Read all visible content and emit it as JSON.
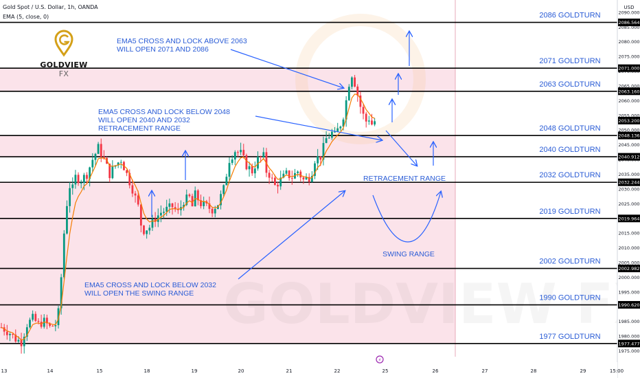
{
  "header": {
    "title": "Gold Spot / U.S. Dollar, 1h, OANDA",
    "indicator": "EMA (5, close, 0)",
    "currency": "USD"
  },
  "logo": {
    "name": "GOLDVIEW",
    "suffix": "FX",
    "watermark": "GOLDVIEW FX"
  },
  "colors": {
    "zone": "#fbe3ea",
    "arrow": "#2962ff",
    "goldturn_text": "#2a5cd6",
    "ema": "#f57c00",
    "candle_up": "#089981",
    "candle_down": "#f23645",
    "line": "#000000",
    "logo_gold": "#d4a018"
  },
  "chart_data": {
    "type": "candlestick",
    "instrument": "Gold Spot / U.S. Dollar",
    "timeframe": "1h",
    "source": "OANDA",
    "ylim": [
      1973,
      2093
    ],
    "y_ticks": [
      1975,
      1980,
      1985,
      1990,
      1995,
      2000,
      2005,
      2010,
      2015,
      2020,
      2025,
      2030,
      2035,
      2040,
      2045,
      2050,
      2055,
      2060,
      2065,
      2070,
      2075,
      2080,
      2085,
      2090
    ],
    "x_ticks": [
      "13",
      "14",
      "15",
      "18",
      "19",
      "20",
      "21",
      "22",
      "25",
      "26",
      "27",
      "28",
      "29",
      "15:00"
    ],
    "goldturn_levels": [
      {
        "label": "2086 GOLDTURN",
        "price": 2086.564,
        "tag": "2086.564"
      },
      {
        "label": "2071 GOLDTURN",
        "price": 2071.0,
        "tag": "2071.000"
      },
      {
        "label": "2063 GOLDTURN",
        "price": 2063.16,
        "tag": "2063.160"
      },
      {
        "label": "2048 GOLDTURN",
        "price": 2048.136,
        "tag": "2048.136"
      },
      {
        "label": "2040 GOLDTURN",
        "price": 2040.912,
        "tag": "2040.912"
      },
      {
        "label": "2032 GOLDTURN",
        "price": 2032.244,
        "tag": "2032.244"
      },
      {
        "label": "2019 GOLDTURN",
        "price": 2019.964,
        "tag": "2019.964"
      },
      {
        "label": "2002 GOLDTURN",
        "price": 2002.982,
        "tag": "2002.982"
      },
      {
        "label": "1990 GOLDTURN",
        "price": 1990.62,
        "tag": "1990.620"
      },
      {
        "label": "1977 GOLDTURN",
        "price": 1977.477,
        "tag": "1977.477"
      }
    ],
    "current_price": {
      "price": 2053.2,
      "tag": "2053.200"
    },
    "zones": [
      [
        2063.16,
        2071.0
      ],
      [
        2040.912,
        2048.136
      ],
      [
        1977.477,
        2032.244
      ]
    ],
    "annotations": [
      {
        "lines": [
          "EMA5 CROSS AND LOCK ABOVE 2063",
          "WILL OPEN 2071 AND 2086"
        ]
      },
      {
        "lines": [
          "EMA5 CROSS AND LOCK BELOW 2048",
          "WILL OPEN 2040 AND 2032",
          "RETRACEMENT RANGE"
        ]
      },
      {
        "lines": [
          "EMA5 CROSS AND LOCK BELOW 2032",
          "WILL OPEN THE SWING RANGE"
        ]
      },
      {
        "lines": [
          "RETRACEMENT RANGE"
        ]
      },
      {
        "lines": [
          "SWING RANGE"
        ]
      }
    ],
    "price_path": [
      [
        0,
        1983
      ],
      [
        3,
        1981
      ],
      [
        5,
        1979
      ],
      [
        7,
        1978
      ],
      [
        9,
        1984
      ],
      [
        11,
        1986
      ],
      [
        13,
        1984
      ],
      [
        15,
        1985
      ],
      [
        17,
        1983
      ],
      [
        19,
        1984
      ],
      [
        20,
        1988
      ],
      [
        21,
        2000
      ],
      [
        22,
        2015
      ],
      [
        23,
        2025
      ],
      [
        24,
        2031
      ],
      [
        25,
        2030
      ],
      [
        26,
        2034
      ],
      [
        28,
        2033
      ],
      [
        30,
        2035
      ],
      [
        32,
        2040
      ],
      [
        34,
        2044
      ],
      [
        36,
        2040
      ],
      [
        38,
        2035
      ],
      [
        40,
        2038
      ],
      [
        42,
        2040
      ],
      [
        44,
        2035
      ],
      [
        46,
        2030
      ],
      [
        48,
        2024
      ],
      [
        49,
        2018
      ],
      [
        50,
        2016
      ],
      [
        52,
        2017
      ],
      [
        54,
        2020
      ],
      [
        56,
        2022
      ],
      [
        58,
        2023
      ],
      [
        60,
        2024
      ],
      [
        62,
        2022
      ],
      [
        64,
        2026
      ],
      [
        66,
        2027
      ],
      [
        67,
        2024
      ],
      [
        68,
        2028
      ],
      [
        70,
        2025
      ],
      [
        72,
        2024
      ],
      [
        74,
        2023
      ],
      [
        76,
        2025
      ],
      [
        78,
        2030
      ],
      [
        80,
        2040
      ],
      [
        82,
        2043
      ],
      [
        84,
        2042
      ],
      [
        86,
        2038
      ],
      [
        88,
        2036
      ],
      [
        90,
        2040
      ],
      [
        92,
        2041
      ],
      [
        93,
        2036
      ],
      [
        94,
        2035
      ],
      [
        95,
        2033
      ],
      [
        96,
        2031
      ],
      [
        98,
        2033
      ],
      [
        100,
        2035
      ],
      [
        102,
        2034
      ],
      [
        104,
        2036
      ],
      [
        106,
        2033
      ],
      [
        108,
        2034
      ],
      [
        109,
        2036
      ],
      [
        110,
        2040
      ],
      [
        112,
        2041
      ],
      [
        114,
        2047
      ],
      [
        116,
        2049
      ],
      [
        117,
        2048
      ],
      [
        118,
        2050
      ],
      [
        119,
        2052
      ],
      [
        120,
        2055
      ],
      [
        121,
        2060
      ],
      [
        122,
        2066
      ],
      [
        123,
        2069
      ],
      [
        124,
        2066
      ],
      [
        125,
        2062
      ],
      [
        126,
        2058
      ],
      [
        127,
        2055
      ],
      [
        128,
        2053
      ],
      [
        129,
        2054
      ],
      [
        130,
        2052
      ],
      [
        131,
        2053
      ]
    ]
  }
}
